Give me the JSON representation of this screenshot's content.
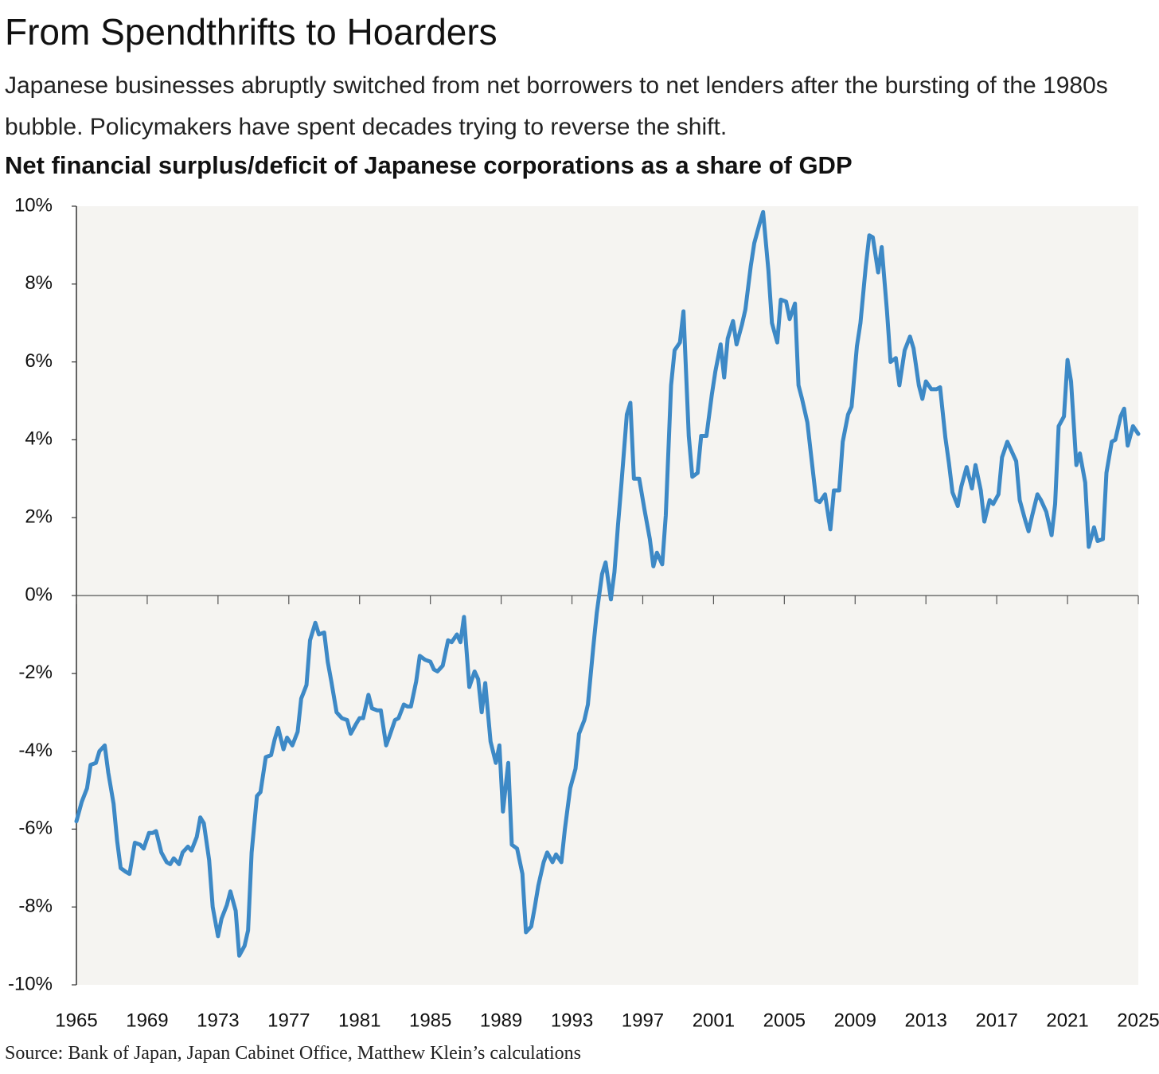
{
  "chart_data": {
    "type": "line",
    "title": "From Spendthrifts to Hoarders",
    "subtitle": "Japanese businesses abruptly switched from net borrowers to net lenders after the bursting of the 1980s bubble. Policymakers have spent decades trying to reverse the shift.",
    "chart_title": "Net financial surplus/deficit of Japanese corporations as a share of GDP",
    "source": "Source: Bank of Japan, Japan Cabinet Office, Matthew Klein’s calculations",
    "color": "#3d89c6",
    "xlim": [
      1965,
      2025
    ],
    "xticks": [
      1965,
      1969,
      1973,
      1977,
      1981,
      1985,
      1989,
      1993,
      1997,
      2001,
      2005,
      2009,
      2013,
      2017,
      2021,
      2025
    ],
    "ylim": [
      -10,
      10
    ],
    "yticks": [
      {
        "value": -10,
        "label": "-10%"
      },
      {
        "value": -8,
        "label": "-8%"
      },
      {
        "value": -6,
        "label": "-6%"
      },
      {
        "value": -4,
        "label": "-4%"
      },
      {
        "value": -2,
        "label": "-2%"
      },
      {
        "value": 0,
        "label": "0%"
      },
      {
        "value": 2,
        "label": "2%"
      },
      {
        "value": 4,
        "label": "4%"
      },
      {
        "value": 6,
        "label": "6%"
      },
      {
        "value": 8,
        "label": "8%"
      },
      {
        "value": 10,
        "label": "10%"
      }
    ],
    "x": [
      1965.0,
      1965.3,
      1965.6,
      1965.8,
      1966.1,
      1966.3,
      1966.6,
      1966.8,
      1967.1,
      1967.3,
      1967.5,
      1967.8,
      1968.0,
      1968.3,
      1968.6,
      1968.8,
      1969.1,
      1969.3,
      1969.5,
      1969.8,
      1970.1,
      1970.3,
      1970.5,
      1970.8,
      1971.0,
      1971.3,
      1971.5,
      1971.8,
      1972.0,
      1972.2,
      1972.5,
      1972.7,
      1973.0,
      1973.2,
      1973.5,
      1973.7,
      1974.0,
      1974.2,
      1974.5,
      1974.7,
      1974.9,
      1975.2,
      1975.4,
      1975.7,
      1976.0,
      1976.2,
      1976.4,
      1976.7,
      1976.9,
      1977.2,
      1977.5,
      1977.7,
      1978.0,
      1978.2,
      1978.5,
      1978.7,
      1979.0,
      1979.2,
      1979.4,
      1979.7,
      1980.0,
      1980.3,
      1980.5,
      1980.8,
      1981.0,
      1981.2,
      1981.5,
      1981.7,
      1982.0,
      1982.2,
      1982.5,
      1982.7,
      1983.0,
      1983.2,
      1983.5,
      1983.7,
      1983.9,
      1984.2,
      1984.4,
      1984.7,
      1985.0,
      1985.2,
      1985.4,
      1985.7,
      1986.0,
      1986.2,
      1986.5,
      1986.7,
      1986.9,
      1987.2,
      1987.5,
      1987.7,
      1987.9,
      1988.1,
      1988.4,
      1988.7,
      1988.9,
      1989.1,
      1989.4,
      1989.6,
      1989.9,
      1990.2,
      1990.4,
      1990.7,
      1990.9,
      1991.1,
      1991.4,
      1991.6,
      1991.9,
      1992.1,
      1992.4,
      1992.6,
      1992.9,
      1993.2,
      1993.4,
      1993.7,
      1993.9,
      1994.2,
      1994.4,
      1994.7,
      1994.9,
      1995.2,
      1995.4,
      1995.6,
      1995.8,
      1996.1,
      1996.3,
      1996.5,
      1996.8,
      1997.1,
      1997.4,
      1997.6,
      1997.8,
      1998.1,
      1998.3,
      1998.6,
      1998.8,
      1999.1,
      1999.3,
      1999.6,
      1999.8,
      2000.1,
      2000.3,
      2000.6,
      2000.9,
      2001.1,
      2001.4,
      2001.6,
      2001.8,
      2002.1,
      2002.3,
      2002.6,
      2002.8,
      2003.1,
      2003.3,
      2003.6,
      2003.8,
      2004.1,
      2004.3,
      2004.6,
      2004.8,
      2005.1,
      2005.3,
      2005.6,
      2005.8,
      2006.0,
      2006.3,
      2006.5,
      2006.8,
      2007.0,
      2007.3,
      2007.6,
      2007.8,
      2008.1,
      2008.3,
      2008.6,
      2008.8,
      2009.1,
      2009.3,
      2009.6,
      2009.8,
      2010.0,
      2010.3,
      2010.5,
      2010.8,
      2011.0,
      2011.3,
      2011.5,
      2011.8,
      2012.1,
      2012.3,
      2012.6,
      2012.8,
      2013.0,
      2013.3,
      2013.6,
      2013.8,
      2014.1,
      2014.3,
      2014.5,
      2014.8,
      2015.0,
      2015.3,
      2015.6,
      2015.8,
      2016.1,
      2016.3,
      2016.6,
      2016.8,
      2017.1,
      2017.3,
      2017.6,
      2017.8,
      2018.1,
      2018.3,
      2018.6,
      2018.8,
      2019.0,
      2019.3,
      2019.5,
      2019.8,
      2020.1,
      2020.3,
      2020.5,
      2020.8,
      2021.0,
      2021.2,
      2021.5,
      2021.7,
      2022.0,
      2022.2,
      2022.5,
      2022.7,
      2023.0,
      2023.2,
      2023.5,
      2023.7,
      2024.0,
      2024.2,
      2024.4,
      2024.7,
      2025.0
    ],
    "values": [
      -5.8,
      -5.3,
      -4.95,
      -4.35,
      -4.3,
      -4.0,
      -3.85,
      -4.55,
      -5.35,
      -6.3,
      -7.0,
      -7.1,
      -7.15,
      -6.35,
      -6.4,
      -6.5,
      -6.1,
      -6.1,
      -6.05,
      -6.6,
      -6.85,
      -6.9,
      -6.75,
      -6.9,
      -6.6,
      -6.45,
      -6.55,
      -6.2,
      -5.7,
      -5.85,
      -6.8,
      -8.0,
      -8.75,
      -8.3,
      -7.95,
      -7.6,
      -8.1,
      -9.25,
      -9.0,
      -8.6,
      -6.6,
      -5.15,
      -5.05,
      -4.15,
      -4.1,
      -3.7,
      -3.4,
      -3.95,
      -3.65,
      -3.85,
      -3.5,
      -2.65,
      -2.3,
      -1.15,
      -0.7,
      -1.0,
      -0.95,
      -1.7,
      -2.2,
      -3.0,
      -3.15,
      -3.2,
      -3.55,
      -3.3,
      -3.15,
      -3.15,
      -2.55,
      -2.9,
      -2.95,
      -2.95,
      -3.85,
      -3.6,
      -3.2,
      -3.15,
      -2.8,
      -2.85,
      -2.85,
      -2.2,
      -1.55,
      -1.65,
      -1.7,
      -1.9,
      -1.95,
      -1.8,
      -1.15,
      -1.2,
      -1.0,
      -1.2,
      -0.55,
      -2.35,
      -1.95,
      -2.15,
      -3.0,
      -2.25,
      -3.75,
      -4.3,
      -3.85,
      -5.55,
      -4.3,
      -6.4,
      -6.5,
      -7.15,
      -8.65,
      -8.5,
      -8.0,
      -7.45,
      -6.85,
      -6.6,
      -6.85,
      -6.65,
      -6.85,
      -6.0,
      -4.95,
      -4.45,
      -3.55,
      -3.2,
      -2.8,
      -1.35,
      -0.45,
      0.55,
      0.85,
      -0.1,
      0.6,
      1.8,
      2.9,
      4.65,
      4.95,
      3.0,
      3.0,
      2.2,
      1.45,
      0.75,
      1.1,
      0.8,
      2.05,
      5.4,
      6.3,
      6.5,
      7.3,
      4.1,
      3.05,
      3.15,
      4.1,
      4.1,
      5.15,
      5.75,
      6.45,
      5.6,
      6.6,
      7.05,
      6.45,
      6.95,
      7.35,
      8.45,
      9.05,
      9.55,
      9.85,
      8.35,
      7.0,
      6.5,
      7.6,
      7.55,
      7.1,
      7.5,
      5.4,
      5.05,
      4.45,
      3.65,
      2.45,
      2.4,
      2.6,
      1.7,
      2.7,
      2.7,
      3.95,
      4.65,
      4.85,
      6.4,
      7.0,
      8.45,
      9.25,
      9.2,
      8.3,
      8.95,
      7.3,
      6.0,
      6.1,
      5.4,
      6.3,
      6.65,
      6.35,
      5.4,
      5.05,
      5.5,
      5.3,
      5.3,
      5.35,
      4.05,
      3.4,
      2.65,
      2.3,
      2.8,
      3.3,
      2.75,
      3.35,
      2.7,
      1.9,
      2.45,
      2.35,
      2.6,
      3.55,
      3.95,
      3.75,
      3.45,
      2.45,
      1.95,
      1.65,
      2.05,
      2.6,
      2.45,
      2.15,
      1.55,
      2.35,
      4.35,
      4.6,
      6.05,
      5.5,
      3.35,
      3.65,
      2.9,
      1.25,
      1.75,
      1.4,
      1.45,
      3.15,
      3.95,
      4.0,
      4.6,
      4.8,
      3.85,
      4.35,
      4.15
    ]
  }
}
